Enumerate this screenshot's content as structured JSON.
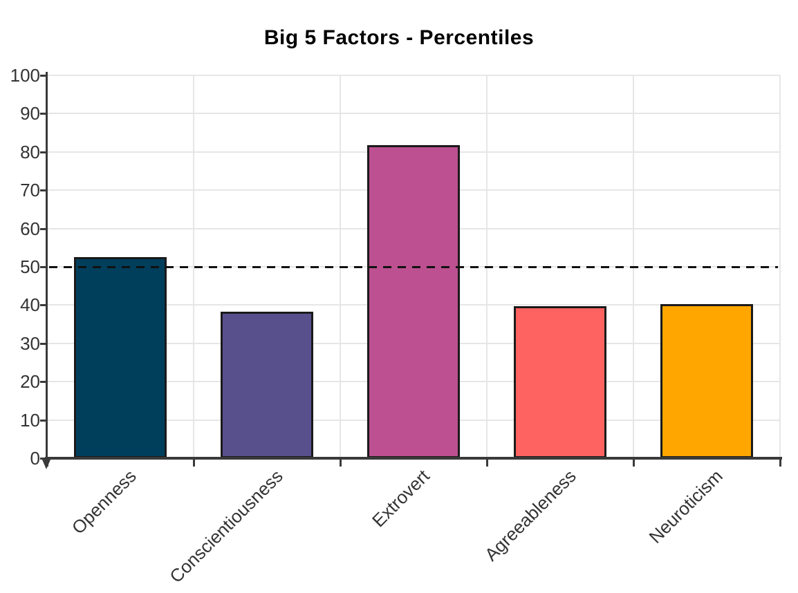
{
  "chart_data": {
    "type": "bar",
    "title": "Big 5 Factors - Percentiles",
    "categories": [
      "Openness",
      "Conscientiousness",
      "Extrovert",
      "Agreeableness",
      "Neuroticism"
    ],
    "values": [
      52.5,
      38.3,
      81.8,
      39.7,
      40.3
    ],
    "bar_colors": [
      "#003f5c",
      "#58508d",
      "#bc5090",
      "#ff6361",
      "#ffa600"
    ],
    "bar_border_color": "#1a1a1a",
    "xlabel": "",
    "ylabel": "",
    "ylim": [
      0,
      100
    ],
    "y_ticks": [
      0,
      10,
      20,
      30,
      40,
      50,
      60,
      70,
      80,
      90,
      100
    ],
    "grid": true,
    "legend": "none",
    "reference_line": {
      "y": 50,
      "style": "dashed",
      "color": "#111111"
    }
  },
  "colors": {
    "background": "#ffffff",
    "axis": "#3a3a3a",
    "gridline": "#e6e6e6",
    "tick_label": "#333333",
    "title": "#000000",
    "reference_line": "#111111"
  }
}
